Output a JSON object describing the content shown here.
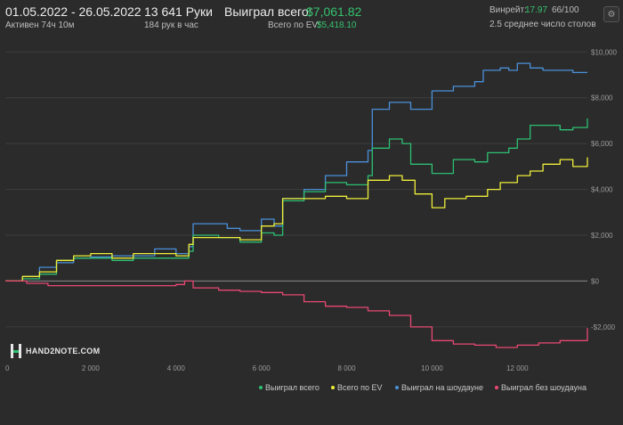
{
  "header": {
    "date_range": "01.05.2022 - 26.05.2022",
    "active_time": "Активен 74ч 10м",
    "hands": "13 641 Руки",
    "hands_per_hour": "184 рук в час",
    "total_won_label": "Выиграл всего:",
    "total_won_value": "$7,061.82",
    "ev_label": "Всего по EV:",
    "ev_value": "$5,418.10",
    "winrate_label": "Винрейт:",
    "winrate_value": "17.97",
    "winrate_sample": "66/100",
    "tables": "2.5 среднее число столов"
  },
  "logo": {
    "text": "HAND2NOTE.COM"
  },
  "colors": {
    "won": "#2dbf73",
    "ev": "#eeee3a",
    "showdown": "#4a90d9",
    "non_showdown": "#e84872",
    "zero_line": "#8a8a8a"
  },
  "chart_data": {
    "type": "line",
    "xlim": [
      0,
      13641
    ],
    "ylim": [
      -3600,
      10400
    ],
    "x_ticks": [
      0,
      2000,
      4000,
      6000,
      8000,
      10000,
      12000
    ],
    "x_tick_labels": [
      "0",
      "2 000",
      "4 000",
      "6 000",
      "8 000",
      "10 000",
      "12 000"
    ],
    "y_ticks": [
      -2000,
      0,
      2000,
      4000,
      6000,
      8000,
      10000
    ],
    "y_tick_labels": [
      "-$2,000",
      "$0",
      "$2,000",
      "$4,000",
      "$6,000",
      "$8,000",
      "$10,000"
    ],
    "legend_position": "bottom-right",
    "series": [
      {
        "name": "Выиграл на шоудауне",
        "color_key": "showdown",
        "points": [
          [
            0,
            0
          ],
          [
            400,
            200
          ],
          [
            800,
            600
          ],
          [
            1200,
            800
          ],
          [
            1600,
            1000
          ],
          [
            2000,
            1050
          ],
          [
            2500,
            1100
          ],
          [
            3000,
            1100
          ],
          [
            3500,
            1400
          ],
          [
            4000,
            1200
          ],
          [
            4300,
            1500
          ],
          [
            4400,
            2500
          ],
          [
            5200,
            2300
          ],
          [
            5500,
            2200
          ],
          [
            6000,
            2700
          ],
          [
            6300,
            2400
          ],
          [
            6500,
            3600
          ],
          [
            7000,
            4000
          ],
          [
            7500,
            4600
          ],
          [
            8000,
            5200
          ],
          [
            8500,
            5700
          ],
          [
            8600,
            7500
          ],
          [
            9000,
            7800
          ],
          [
            9500,
            7500
          ],
          [
            10000,
            8300
          ],
          [
            10500,
            8500
          ],
          [
            11000,
            8700
          ],
          [
            11200,
            9200
          ],
          [
            11600,
            9300
          ],
          [
            11800,
            9200
          ],
          [
            12000,
            9500
          ],
          [
            12300,
            9300
          ],
          [
            12600,
            9200
          ],
          [
            13000,
            9200
          ],
          [
            13300,
            9100
          ],
          [
            13641,
            9100
          ]
        ]
      },
      {
        "name": "Выиграл всего",
        "color_key": "won",
        "points": [
          [
            0,
            0
          ],
          [
            400,
            100
          ],
          [
            800,
            300
          ],
          [
            1200,
            900
          ],
          [
            1600,
            1000
          ],
          [
            2000,
            1000
          ],
          [
            2500,
            900
          ],
          [
            3000,
            1000
          ],
          [
            3500,
            1000
          ],
          [
            4000,
            1000
          ],
          [
            4300,
            1300
          ],
          [
            4400,
            2000
          ],
          [
            5000,
            1900
          ],
          [
            5500,
            1700
          ],
          [
            6000,
            2100
          ],
          [
            6300,
            2000
          ],
          [
            6500,
            3500
          ],
          [
            7000,
            3900
          ],
          [
            7500,
            4300
          ],
          [
            8000,
            4200
          ],
          [
            8500,
            4600
          ],
          [
            8600,
            5800
          ],
          [
            9000,
            6200
          ],
          [
            9300,
            6000
          ],
          [
            9500,
            5100
          ],
          [
            10000,
            4700
          ],
          [
            10500,
            5300
          ],
          [
            11000,
            5200
          ],
          [
            11300,
            5600
          ],
          [
            11800,
            5800
          ],
          [
            12000,
            6200
          ],
          [
            12300,
            6800
          ],
          [
            12600,
            6800
          ],
          [
            13000,
            6600
          ],
          [
            13300,
            6700
          ],
          [
            13641,
            7100
          ]
        ]
      },
      {
        "name": "Всего по EV",
        "color_key": "ev",
        "points": [
          [
            0,
            0
          ],
          [
            400,
            200
          ],
          [
            800,
            400
          ],
          [
            1200,
            900
          ],
          [
            1600,
            1100
          ],
          [
            2000,
            1200
          ],
          [
            2500,
            1000
          ],
          [
            3000,
            1200
          ],
          [
            3500,
            1200
          ],
          [
            4000,
            1100
          ],
          [
            4300,
            1600
          ],
          [
            4400,
            1900
          ],
          [
            5000,
            1900
          ],
          [
            5500,
            1800
          ],
          [
            6000,
            2400
          ],
          [
            6300,
            2500
          ],
          [
            6500,
            3600
          ],
          [
            7000,
            3600
          ],
          [
            7500,
            3700
          ],
          [
            8000,
            3600
          ],
          [
            8500,
            4400
          ],
          [
            8600,
            4400
          ],
          [
            9000,
            4600
          ],
          [
            9300,
            4400
          ],
          [
            9600,
            3800
          ],
          [
            10000,
            3200
          ],
          [
            10300,
            3600
          ],
          [
            10800,
            3700
          ],
          [
            11300,
            4000
          ],
          [
            11600,
            4300
          ],
          [
            12000,
            4600
          ],
          [
            12300,
            4800
          ],
          [
            12600,
            5100
          ],
          [
            13000,
            5300
          ],
          [
            13300,
            5000
          ],
          [
            13641,
            5400
          ]
        ]
      },
      {
        "name": "Выиграл без шоудауна",
        "color_key": "non_showdown",
        "points": [
          [
            0,
            0
          ],
          [
            500,
            -100
          ],
          [
            1000,
            -200
          ],
          [
            2000,
            -200
          ],
          [
            3000,
            -200
          ],
          [
            4000,
            -150
          ],
          [
            4200,
            0
          ],
          [
            4400,
            -300
          ],
          [
            5000,
            -400
          ],
          [
            5500,
            -450
          ],
          [
            6000,
            -500
          ],
          [
            6500,
            -600
          ],
          [
            7000,
            -900
          ],
          [
            7500,
            -1100
          ],
          [
            8000,
            -1150
          ],
          [
            8500,
            -1300
          ],
          [
            9000,
            -1500
          ],
          [
            9500,
            -2000
          ],
          [
            10000,
            -2600
          ],
          [
            10500,
            -2750
          ],
          [
            11000,
            -2800
          ],
          [
            11500,
            -2900
          ],
          [
            12000,
            -2800
          ],
          [
            12500,
            -2700
          ],
          [
            13000,
            -2600
          ],
          [
            13641,
            -2050
          ]
        ]
      }
    ]
  }
}
